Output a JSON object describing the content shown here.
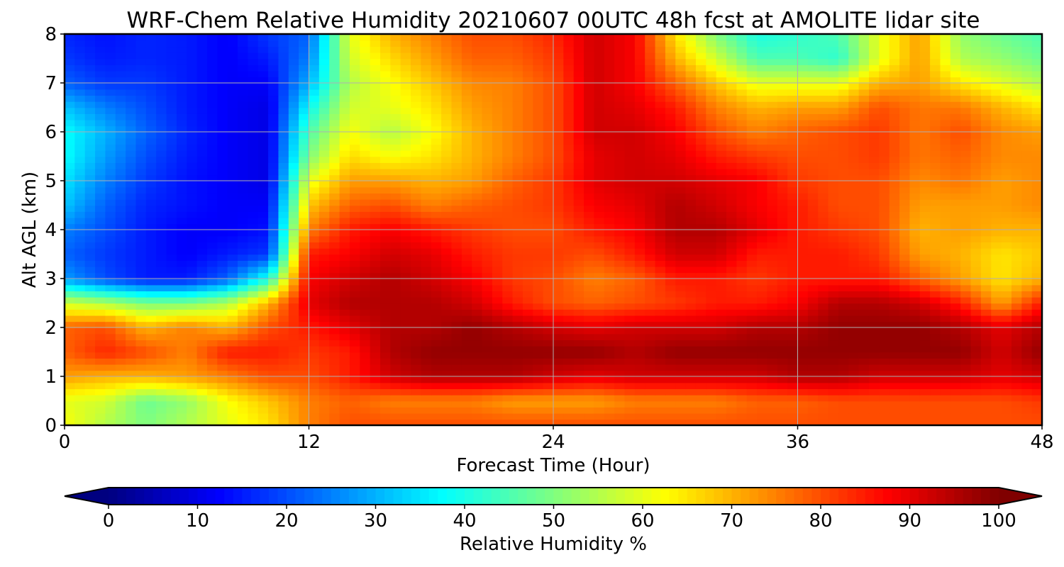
{
  "chart_data": {
    "type": "heatmap",
    "title": "WRF-Chem Relative Humidity 20210607 00UTC 48h fcst at AMOLITE lidar site",
    "xlabel": "Forecast Time (Hour)",
    "ylabel": "Alt AGL (km)",
    "xlim": [
      0,
      48
    ],
    "ylim": [
      0,
      8
    ],
    "xticks": [
      "0",
      "12",
      "24",
      "36",
      "48"
    ],
    "yticks": [
      "0",
      "1",
      "2",
      "3",
      "4",
      "5",
      "6",
      "7",
      "8"
    ],
    "grid": true,
    "colormap": "jet",
    "colorbar": {
      "label": "Relative Humidity %",
      "range": [
        0,
        100
      ],
      "extend": "both",
      "ticks": [
        "0",
        "10",
        "20",
        "30",
        "40",
        "50",
        "60",
        "70",
        "80",
        "90",
        "100"
      ]
    },
    "x": [
      0,
      2,
      4,
      6,
      8,
      10,
      12,
      14,
      16,
      18,
      20,
      22,
      24,
      26,
      28,
      30,
      32,
      34,
      36,
      38,
      40,
      42,
      44,
      46,
      48
    ],
    "y": [
      0,
      0.5,
      1,
      1.5,
      2,
      2.5,
      3,
      3.5,
      4,
      4.5,
      5,
      5.5,
      6,
      6.5,
      7,
      7.5,
      8
    ],
    "z": [
      [
        62,
        55,
        50,
        55,
        60,
        65,
        75,
        80,
        80,
        80,
        80,
        80,
        80,
        80,
        80,
        80,
        80,
        80,
        80,
        80,
        80,
        80,
        80,
        80,
        80
      ],
      [
        60,
        58,
        48,
        52,
        62,
        68,
        75,
        78,
        75,
        75,
        75,
        72,
        72,
        72,
        75,
        75,
        75,
        78,
        78,
        80,
        80,
        80,
        80,
        80,
        82
      ],
      [
        72,
        70,
        70,
        72,
        75,
        80,
        80,
        85,
        92,
        95,
        95,
        95,
        92,
        90,
        92,
        92,
        92,
        92,
        95,
        95,
        92,
        92,
        92,
        90,
        92
      ],
      [
        78,
        84,
        80,
        75,
        85,
        85,
        82,
        85,
        95,
        98,
        98,
        98,
        98,
        98,
        95,
        98,
        98,
        98,
        98,
        98,
        98,
        98,
        98,
        92,
        98
      ],
      [
        78,
        80,
        70,
        75,
        70,
        80,
        85,
        90,
        95,
        95,
        98,
        95,
        92,
        90,
        92,
        92,
        92,
        95,
        95,
        98,
        98,
        98,
        95,
        90,
        95
      ],
      [
        58,
        55,
        50,
        50,
        55,
        70,
        90,
        95,
        95,
        95,
        92,
        85,
        80,
        78,
        80,
        82,
        85,
        85,
        88,
        95,
        95,
        92,
        85,
        72,
        85
      ],
      [
        28,
        20,
        15,
        15,
        22,
        40,
        88,
        92,
        95,
        92,
        88,
        82,
        80,
        75,
        78,
        85,
        85,
        82,
        85,
        85,
        85,
        78,
        72,
        65,
        70
      ],
      [
        22,
        18,
        15,
        12,
        15,
        18,
        85,
        88,
        92,
        90,
        85,
        82,
        82,
        80,
        85,
        92,
        92,
        85,
        85,
        85,
        82,
        72,
        70,
        65,
        68
      ],
      [
        25,
        20,
        15,
        12,
        12,
        14,
        75,
        85,
        88,
        85,
        82,
        80,
        80,
        85,
        88,
        95,
        95,
        90,
        85,
        82,
        80,
        70,
        72,
        70,
        70
      ],
      [
        32,
        22,
        16,
        14,
        12,
        12,
        68,
        78,
        80,
        75,
        78,
        80,
        82,
        88,
        90,
        95,
        92,
        88,
        85,
        80,
        80,
        72,
        72,
        72,
        74
      ],
      [
        35,
        25,
        18,
        14,
        12,
        10,
        60,
        72,
        72,
        70,
        72,
        78,
        82,
        90,
        92,
        92,
        90,
        88,
        82,
        80,
        80,
        74,
        76,
        72,
        74
      ],
      [
        38,
        28,
        20,
        15,
        12,
        10,
        50,
        66,
        62,
        65,
        70,
        75,
        80,
        90,
        92,
        90,
        85,
        82,
        80,
        80,
        82,
        76,
        78,
        74,
        74
      ],
      [
        38,
        30,
        22,
        16,
        12,
        10,
        45,
        62,
        55,
        62,
        70,
        75,
        80,
        92,
        92,
        88,
        80,
        75,
        78,
        80,
        82,
        76,
        80,
        74,
        72
      ],
      [
        32,
        25,
        20,
        15,
        12,
        10,
        38,
        58,
        60,
        65,
        72,
        75,
        80,
        92,
        90,
        85,
        75,
        70,
        72,
        72,
        80,
        76,
        76,
        70,
        65
      ],
      [
        22,
        18,
        18,
        15,
        12,
        12,
        30,
        55,
        62,
        68,
        74,
        75,
        80,
        92,
        88,
        78,
        68,
        60,
        60,
        60,
        70,
        72,
        65,
        60,
        55
      ],
      [
        18,
        15,
        16,
        15,
        12,
        15,
        25,
        58,
        66,
        72,
        78,
        78,
        82,
        92,
        88,
        70,
        58,
        45,
        45,
        42,
        60,
        72,
        55,
        52,
        48
      ],
      [
        16,
        14,
        16,
        15,
        12,
        18,
        22,
        60,
        70,
        75,
        80,
        80,
        84,
        92,
        88,
        65,
        50,
        40,
        42,
        45,
        60,
        72,
        52,
        48,
        45
      ]
    ]
  }
}
